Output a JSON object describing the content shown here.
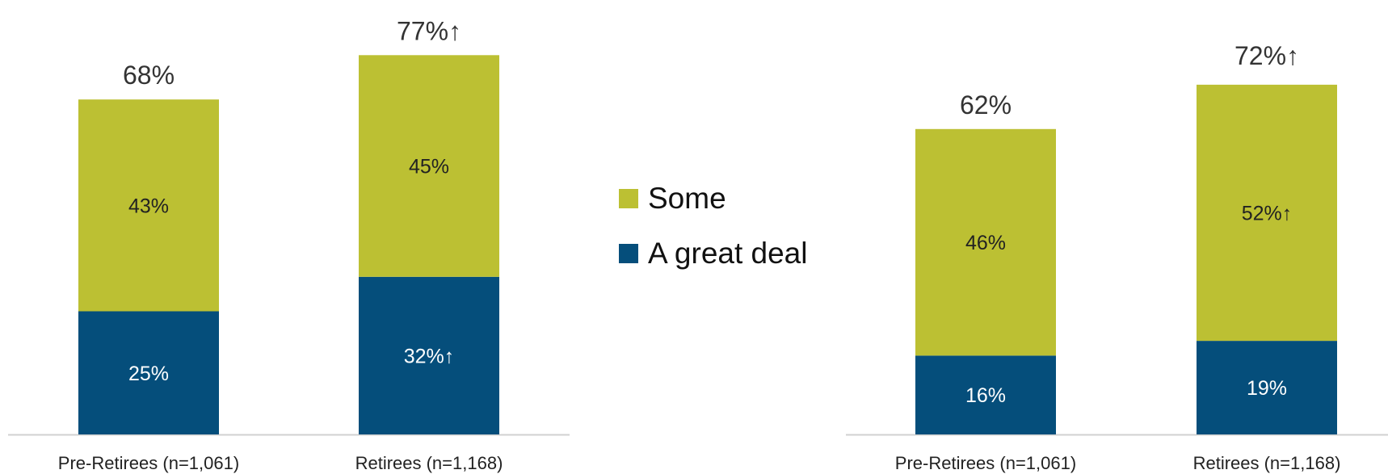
{
  "colors": {
    "some": "#BCC033",
    "great_deal": "#054E7B",
    "axis": "#D0D0D0",
    "text": "#333333"
  },
  "legend": {
    "items": [
      {
        "label": "Some",
        "color": "#BCC033"
      },
      {
        "label": "A great deal",
        "color": "#054E7B"
      }
    ]
  },
  "chart_data": [
    {
      "type": "bar",
      "stacked": true,
      "categories": [
        "Pre-Retirees (n=1,061)",
        "Retirees (n=1,168)"
      ],
      "series": [
        {
          "name": "A great deal",
          "values": [
            25,
            32
          ],
          "labels": [
            "25%",
            "32%↑"
          ]
        },
        {
          "name": "Some",
          "values": [
            43,
            45
          ],
          "labels": [
            "43%",
            "45%"
          ]
        }
      ],
      "totals": [
        68,
        77
      ],
      "total_labels": [
        "68%",
        "77%↑"
      ],
      "ylim": [
        0,
        85
      ]
    },
    {
      "type": "bar",
      "stacked": true,
      "categories": [
        "Pre-Retirees (n=1,061)",
        "Retirees (n=1,168)"
      ],
      "series": [
        {
          "name": "A great deal",
          "values": [
            16,
            19
          ],
          "labels": [
            "16%",
            "19%"
          ]
        },
        {
          "name": "Some",
          "values": [
            46,
            52
          ],
          "labels": [
            "46%",
            "52%↑"
          ]
        }
      ],
      "totals": [
        62,
        72
      ],
      "total_labels": [
        "62%",
        "72%↑"
      ],
      "ylim": [
        0,
        85
      ]
    }
  ]
}
